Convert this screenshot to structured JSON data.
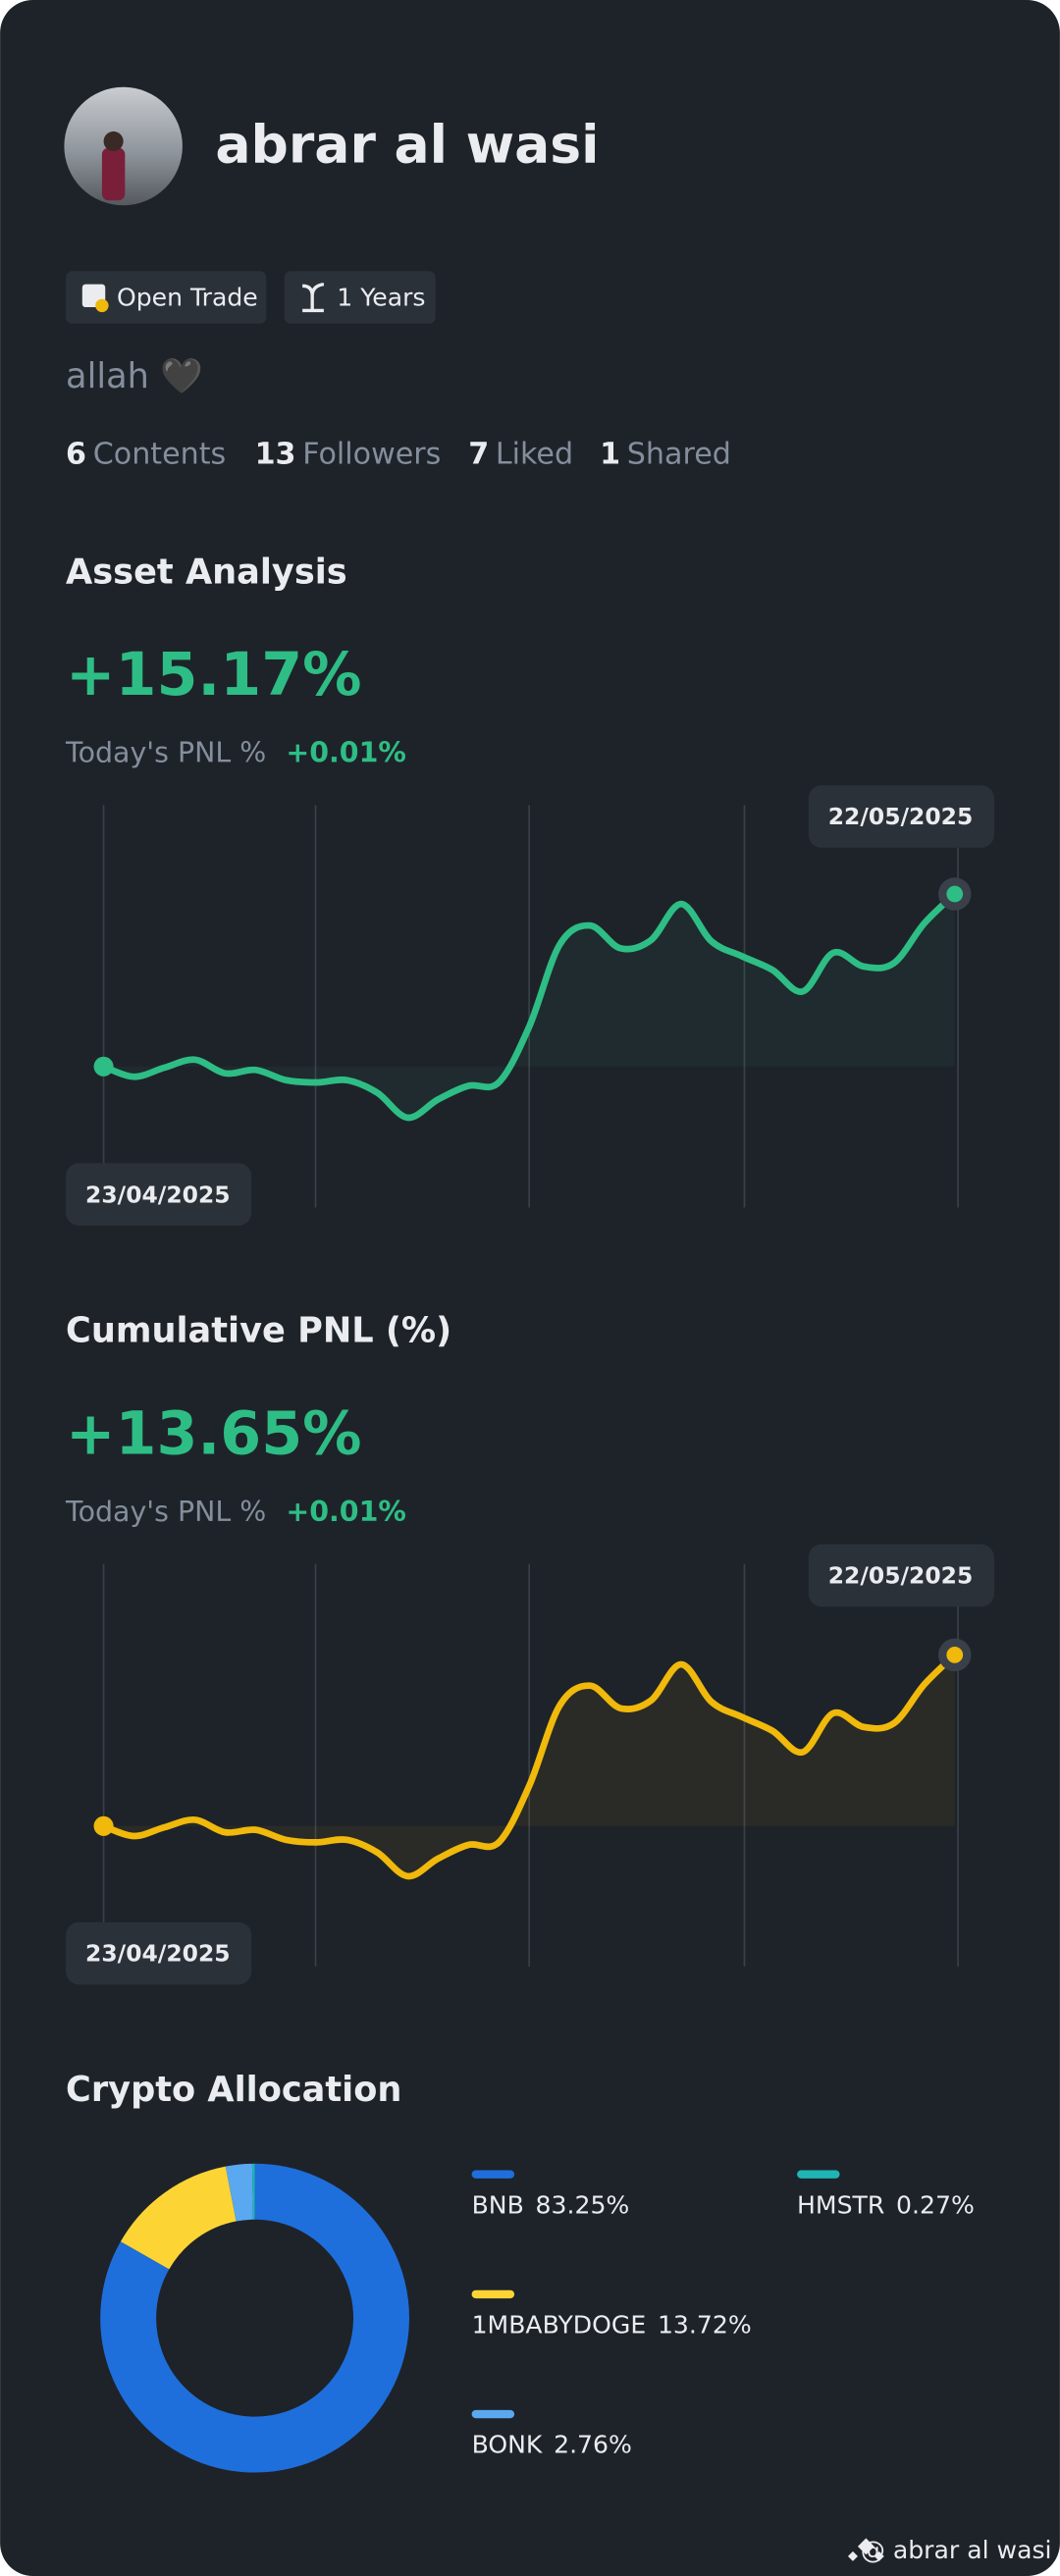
{
  "profile": {
    "name": "abrar al wasi",
    "badges": [
      "Open Trade",
      "1 Years"
    ],
    "bio": "allah 🖤",
    "stats": [
      {
        "value": 6,
        "label": "Contents"
      },
      {
        "value": 13,
        "label": "Followers"
      },
      {
        "value": 7,
        "label": "Liked"
      },
      {
        "value": 1,
        "label": "Shared"
      }
    ]
  },
  "chart_data": [
    {
      "type": "line",
      "title": "Asset Analysis",
      "headline": "+15.17%",
      "today_label": "Today's PNL %",
      "today_value": "+0.01%",
      "start_label": "23/04/2025",
      "end_label": "22/05/2025",
      "color": "#2ebd85",
      "ylim": [
        -12.4,
        23
      ],
      "values": [
        0,
        -0.9,
        -0.1,
        0.6,
        -0.6,
        -0.3,
        -1.2,
        -1.4,
        -1.2,
        -2.3,
        -4.5,
        -2.9,
        -1.7,
        -1.4,
        3.5,
        10.7,
        12.4,
        10.4,
        11.1,
        14.3,
        11.0,
        9.7,
        8.5,
        6.6,
        10.0,
        8.8,
        9.1,
        12.6,
        15.17
      ]
    },
    {
      "type": "line",
      "title": "Cumulative PNL (%)",
      "headline": "+13.65%",
      "today_label": "Today's PNL %",
      "today_value": "+0.01%",
      "start_label": "23/04/2025",
      "end_label": "22/05/2025",
      "color": "#f0b90b",
      "ylim": [
        -11.2,
        20.9
      ],
      "values": [
        0,
        -0.8,
        -0.1,
        0.5,
        -0.5,
        -0.3,
        -1.1,
        -1.3,
        -1.1,
        -2.1,
        -4.0,
        -2.6,
        -1.5,
        -1.3,
        3.2,
        9.6,
        11.2,
        9.4,
        10.0,
        12.9,
        9.9,
        8.7,
        7.6,
        5.9,
        9.0,
        7.9,
        8.2,
        11.3,
        13.65
      ]
    },
    {
      "type": "pie",
      "title": "Crypto Allocation",
      "categories": [
        "BNB",
        "1MBABYDOGE",
        "BONK",
        "HMSTR"
      ],
      "values": [
        83.25,
        13.72,
        2.76,
        0.27
      ],
      "value_labels": [
        "83.25%",
        "13.72%",
        "2.76%",
        "0.27%"
      ],
      "colors": [
        "#1e6fdc",
        "#fcd535",
        "#5aa8f0",
        "#1fb5b5"
      ]
    }
  ],
  "footer": "@ abrar al wasi"
}
